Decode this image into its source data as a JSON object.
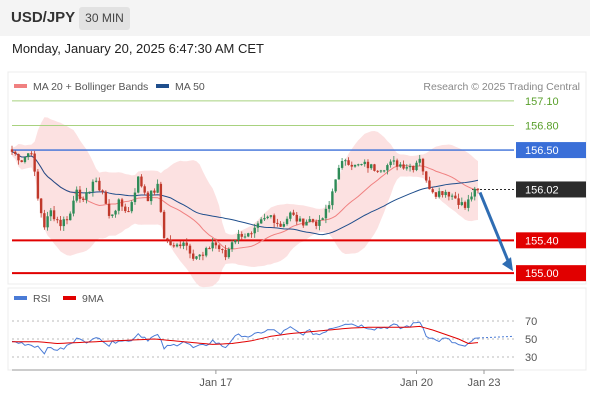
{
  "header": {
    "symbol": "USD/JPY",
    "timeframe": "30 MIN",
    "timestamp": "Monday, January 20, 2025 6:47:30 AM CET"
  },
  "colors": {
    "bollinger": "#f08080",
    "ma50": "#1f4e8c",
    "support": "#e10000",
    "resistance_green": "#a8d27f",
    "pivot_blue": "#3a6fd8",
    "current_price": "#2b2b2b",
    "arrow": "#2f6db3",
    "rsi": "#4a7bd6",
    "rsi_ma": "#e10000",
    "candle_up": "#2e8b57",
    "candle_down": "#c0392b"
  },
  "chart_data": [
    {
      "type": "candlestick",
      "legend": [
        {
          "label": "MA 20 + Bollinger Bands",
          "color": "#f08080"
        },
        {
          "label": "MA 50",
          "color": "#1f4e8c"
        }
      ],
      "credit": "Research © 2025 Trading Central",
      "price_range": [
        154.88,
        157.22
      ],
      "levels": [
        {
          "value": 157.1,
          "label": "157.10",
          "style": "resistance_green"
        },
        {
          "value": 156.8,
          "label": "156.80",
          "style": "resistance_green"
        },
        {
          "value": 156.5,
          "label": "156.50",
          "style": "pivot_blue"
        },
        {
          "value": 156.02,
          "label": "156.02",
          "style": "current_price"
        },
        {
          "value": 155.4,
          "label": "155.40",
          "style": "support"
        },
        {
          "value": 155.0,
          "label": "155.00",
          "style": "support"
        }
      ],
      "x_ticks": [
        {
          "index": 63,
          "label": "Jan 17"
        },
        {
          "index": 125,
          "label": "Jan 20"
        },
        {
          "index": 140,
          "label": "Jan 23"
        }
      ],
      "price_path": [
        [
          0,
          156.48
        ],
        [
          3,
          156.38
        ],
        [
          6,
          156.5
        ],
        [
          8,
          155.9
        ],
        [
          10,
          155.58
        ],
        [
          12,
          155.75
        ],
        [
          15,
          155.6
        ],
        [
          18,
          155.72
        ],
        [
          20,
          156.05
        ],
        [
          22,
          155.85
        ],
        [
          25,
          156.12
        ],
        [
          28,
          156.0
        ],
        [
          30,
          155.68
        ],
        [
          33,
          155.85
        ],
        [
          36,
          155.75
        ],
        [
          39,
          156.15
        ],
        [
          42,
          155.92
        ],
        [
          45,
          156.05
        ],
        [
          47,
          155.45
        ],
        [
          50,
          155.3
        ],
        [
          53,
          155.4
        ],
        [
          56,
          155.22
        ],
        [
          59,
          155.2
        ],
        [
          62,
          155.38
        ],
        [
          64,
          155.3
        ],
        [
          66,
          155.2
        ],
        [
          68,
          155.4
        ],
        [
          71,
          155.48
        ],
        [
          74,
          155.45
        ],
        [
          77,
          155.62
        ],
        [
          80,
          155.7
        ],
        [
          83,
          155.58
        ],
        [
          86,
          155.72
        ],
        [
          89,
          155.62
        ],
        [
          92,
          155.65
        ],
        [
          95,
          155.6
        ],
        [
          98,
          155.82
        ],
        [
          100,
          156.18
        ],
        [
          103,
          156.4
        ],
        [
          106,
          156.3
        ],
        [
          109,
          156.32
        ],
        [
          112,
          156.28
        ],
        [
          115,
          156.3
        ],
        [
          118,
          156.34
        ],
        [
          121,
          156.32
        ],
        [
          124,
          156.3
        ],
        [
          126,
          156.42
        ],
        [
          128,
          156.1
        ],
        [
          131,
          155.98
        ],
        [
          134,
          156.0
        ],
        [
          137,
          155.92
        ],
        [
          140,
          155.8
        ],
        [
          142,
          155.95
        ],
        [
          144,
          156.02
        ]
      ],
      "n_candles": 145
    },
    {
      "type": "line",
      "legend": [
        {
          "label": "RSI",
          "color": "#4a7bd6"
        },
        {
          "label": "9MA",
          "color": "#e10000"
        }
      ],
      "y_ticks": [
        70,
        50,
        30
      ],
      "y_range": [
        20,
        80
      ],
      "rsi_path": [
        [
          0,
          47
        ],
        [
          4,
          45
        ],
        [
          8,
          42
        ],
        [
          10,
          36
        ],
        [
          12,
          40
        ],
        [
          15,
          38
        ],
        [
          18,
          44
        ],
        [
          21,
          52
        ],
        [
          24,
          46
        ],
        [
          27,
          53
        ],
        [
          30,
          43
        ],
        [
          33,
          50
        ],
        [
          36,
          47
        ],
        [
          39,
          56
        ],
        [
          42,
          50
        ],
        [
          45,
          54
        ],
        [
          47,
          40
        ],
        [
          50,
          43
        ],
        [
          53,
          48
        ],
        [
          56,
          40
        ],
        [
          59,
          42
        ],
        [
          62,
          48
        ],
        [
          64,
          44
        ],
        [
          66,
          41
        ],
        [
          68,
          50
        ],
        [
          71,
          55
        ],
        [
          74,
          52
        ],
        [
          77,
          58
        ],
        [
          80,
          60
        ],
        [
          83,
          56
        ],
        [
          86,
          62
        ],
        [
          89,
          56
        ],
        [
          92,
          58
        ],
        [
          95,
          55
        ],
        [
          98,
          62
        ],
        [
          100,
          64
        ],
        [
          103,
          68
        ],
        [
          106,
          66
        ],
        [
          109,
          64
        ],
        [
          112,
          62
        ],
        [
          115,
          63
        ],
        [
          118,
          65
        ],
        [
          120,
          62
        ],
        [
          122,
          64
        ],
        [
          124,
          66
        ],
        [
          126,
          70
        ],
        [
          128,
          55
        ],
        [
          131,
          48
        ],
        [
          134,
          50
        ],
        [
          137,
          45
        ],
        [
          140,
          40
        ],
        [
          142,
          48
        ],
        [
          144,
          50
        ]
      ],
      "ma_path": [
        [
          0,
          47
        ],
        [
          8,
          47
        ],
        [
          14,
          45
        ],
        [
          20,
          46
        ],
        [
          26,
          47
        ],
        [
          32,
          48
        ],
        [
          38,
          49
        ],
        [
          44,
          50
        ],
        [
          50,
          48
        ],
        [
          56,
          46
        ],
        [
          62,
          44
        ],
        [
          68,
          45
        ],
        [
          74,
          48
        ],
        [
          80,
          53
        ],
        [
          86,
          56
        ],
        [
          92,
          58
        ],
        [
          98,
          60
        ],
        [
          104,
          62
        ],
        [
          110,
          63
        ],
        [
          116,
          63
        ],
        [
          122,
          63
        ],
        [
          126,
          64
        ],
        [
          130,
          60
        ],
        [
          134,
          55
        ],
        [
          138,
          50
        ],
        [
          141,
          45
        ],
        [
          144,
          46
        ]
      ],
      "projection": {
        "from_index": 144,
        "to_index": 156,
        "value": 53
      }
    }
  ]
}
